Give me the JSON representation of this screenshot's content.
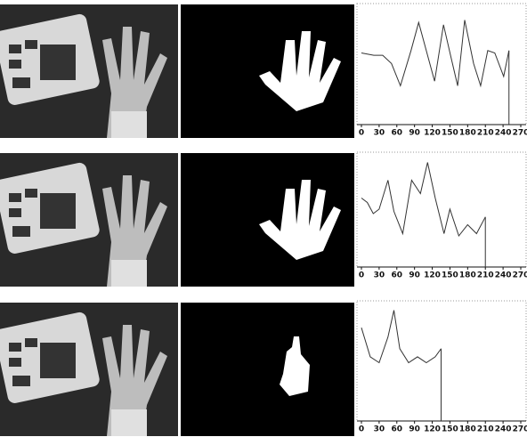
{
  "chart_data": [
    {
      "type": "line",
      "x": [
        0,
        21,
        36,
        51,
        66,
        84,
        97,
        112,
        124,
        139,
        151,
        163,
        175,
        190,
        202,
        214,
        226,
        241,
        250
      ],
      "values": [
        61,
        59,
        59,
        52,
        33,
        63,
        87,
        59,
        37,
        85,
        59,
        33,
        89,
        52,
        33,
        63,
        61,
        41,
        63
      ],
      "xlim": [
        0,
        270
      ],
      "xticks": [
        0,
        30,
        60,
        90,
        120,
        150,
        180,
        210,
        240,
        270
      ],
      "ylim": [
        0,
        100
      ],
      "color": "#333333"
    },
    {
      "type": "line",
      "x": [
        0,
        10,
        20,
        30,
        45,
        55,
        70,
        85,
        100,
        112,
        125,
        140,
        150,
        165,
        180,
        195,
        210
      ],
      "values": [
        62,
        58,
        48,
        52,
        78,
        50,
        30,
        78,
        66,
        94,
        62,
        30,
        52,
        28,
        38,
        30,
        45
      ],
      "xlim": [
        0,
        270
      ],
      "xticks": [
        0,
        30,
        60,
        90,
        120,
        150,
        180,
        210,
        240,
        270
      ],
      "ylim": [
        0,
        100
      ],
      "color": "#333333"
    },
    {
      "type": "line",
      "x": [
        0,
        15,
        30,
        45,
        55,
        65,
        80,
        95,
        110,
        125,
        135
      ],
      "values": [
        80,
        55,
        50,
        72,
        95,
        62,
        50,
        55,
        50,
        55,
        62
      ],
      "xlim": [
        0,
        270
      ],
      "xticks": [
        0,
        30,
        60,
        90,
        120,
        150,
        180,
        210,
        240,
        270
      ],
      "ylim": [
        0,
        100
      ],
      "color": "#333333"
    }
  ]
}
